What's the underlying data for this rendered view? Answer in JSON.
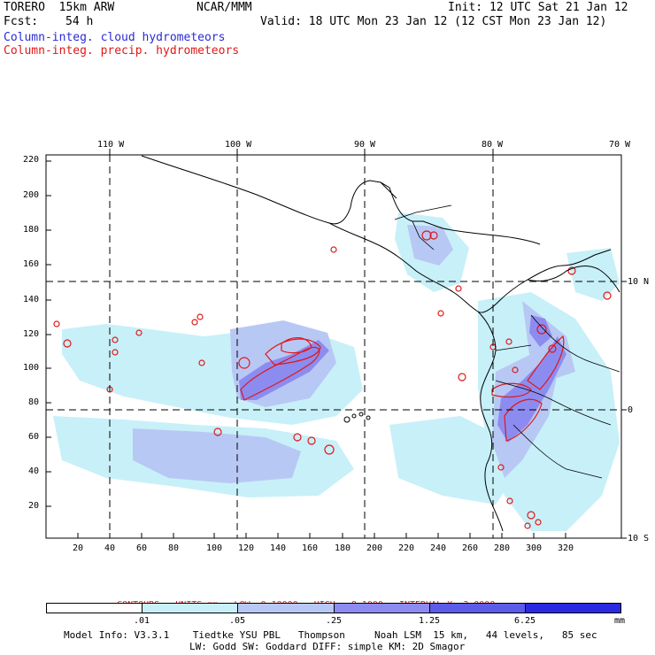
{
  "header": {
    "model": "TORERO  15km ARW",
    "fcst_label": "Fcst:",
    "fcst_value": "54 h",
    "center": "NCAR/MMM",
    "init": "Init: 12 UTC Sat 21 Jan 12",
    "valid": "Valid: 18 UTC Mon 23 Jan 12 (12 CST Mon 23 Jan 12)",
    "field1": "Column-integ. cloud hydrometeors",
    "field2": "Column-integ. precip. hydrometeors"
  },
  "map": {
    "lon_labels": [
      "110 W",
      "100 W",
      "90 W",
      "80 W",
      "70 W"
    ],
    "lat_labels": [
      "10 N",
      "0",
      "10 S"
    ],
    "y_ticks": [
      "220",
      "200",
      "180",
      "160",
      "140",
      "120",
      "100",
      "80",
      "60",
      "40",
      "20"
    ],
    "x_ticks": [
      "20",
      "40",
      "60",
      "80",
      "100",
      "120",
      "140",
      "160",
      "180",
      "200",
      "220",
      "240",
      "260",
      "280",
      "300",
      "320"
    ]
  },
  "contours": {
    "units": "CONTOURS:  UNITS=mm",
    "low": "LOW= 0.10000",
    "high": "HIGH=  8.1000",
    "interval": "INTERVAL=X  3.0000"
  },
  "colorbar": {
    "colors": [
      "#ffffff",
      "#c8f0f8",
      "#b8c8f4",
      "#8c8cf0",
      "#5c5ce8",
      "#2a2ae0"
    ],
    "labels": [
      ".01",
      ".05",
      ".25",
      "1.25",
      "6.25"
    ],
    "unit": "mm"
  },
  "footer": {
    "line1": "Model Info: V3.3.1    Tiedtke YSU PBL   Thompson     Noah LSM  15 km,   44 levels,   85 sec",
    "line2": "LW: Godd SW: Goddard DIFF: simple KM: 2D Smagor"
  },
  "colors": {
    "cloud": "#2a2ad8",
    "precip": "#e01818"
  }
}
